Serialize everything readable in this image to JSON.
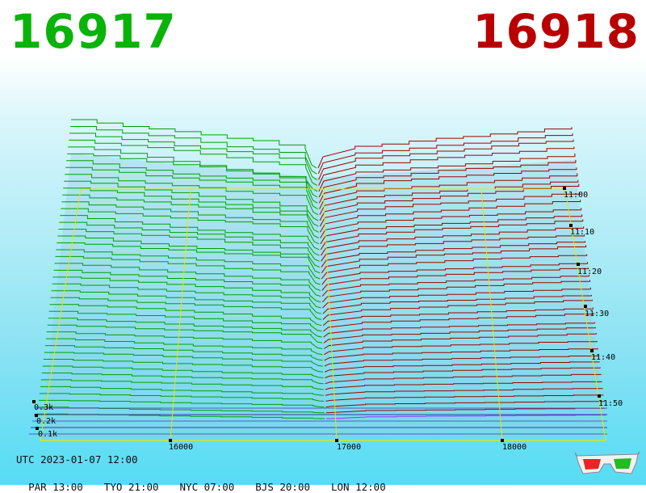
{
  "header": {
    "bid": "16917",
    "ask": "16918"
  },
  "colors": {
    "bid": "#0ab30a",
    "ask": "#b80000",
    "bid_lines": "#00a000",
    "ask_lines": "#a00000",
    "frame": "#e6e600",
    "latest": "#9933ff"
  },
  "chart_data": {
    "type": "3d order book depth surface",
    "x_ticks": [
      "16000",
      "17000",
      "18000"
    ],
    "depth_ticks": [
      "0.1k",
      "0.2k",
      "0.3k"
    ],
    "time_ticks": [
      "11:00",
      "11:10",
      "11:20",
      "11:30",
      "11:40",
      "11:50"
    ],
    "best_bid": 16917,
    "best_ask": 16918
  },
  "footer": {
    "utc": "UTC 2023-01-07 12:00",
    "zones": [
      "PAR 13:00",
      "TYO 21:00",
      "NYC 07:00",
      "BJS 20:00",
      "LON 12:00"
    ]
  },
  "glasses_icon": "3d-glasses-icon"
}
